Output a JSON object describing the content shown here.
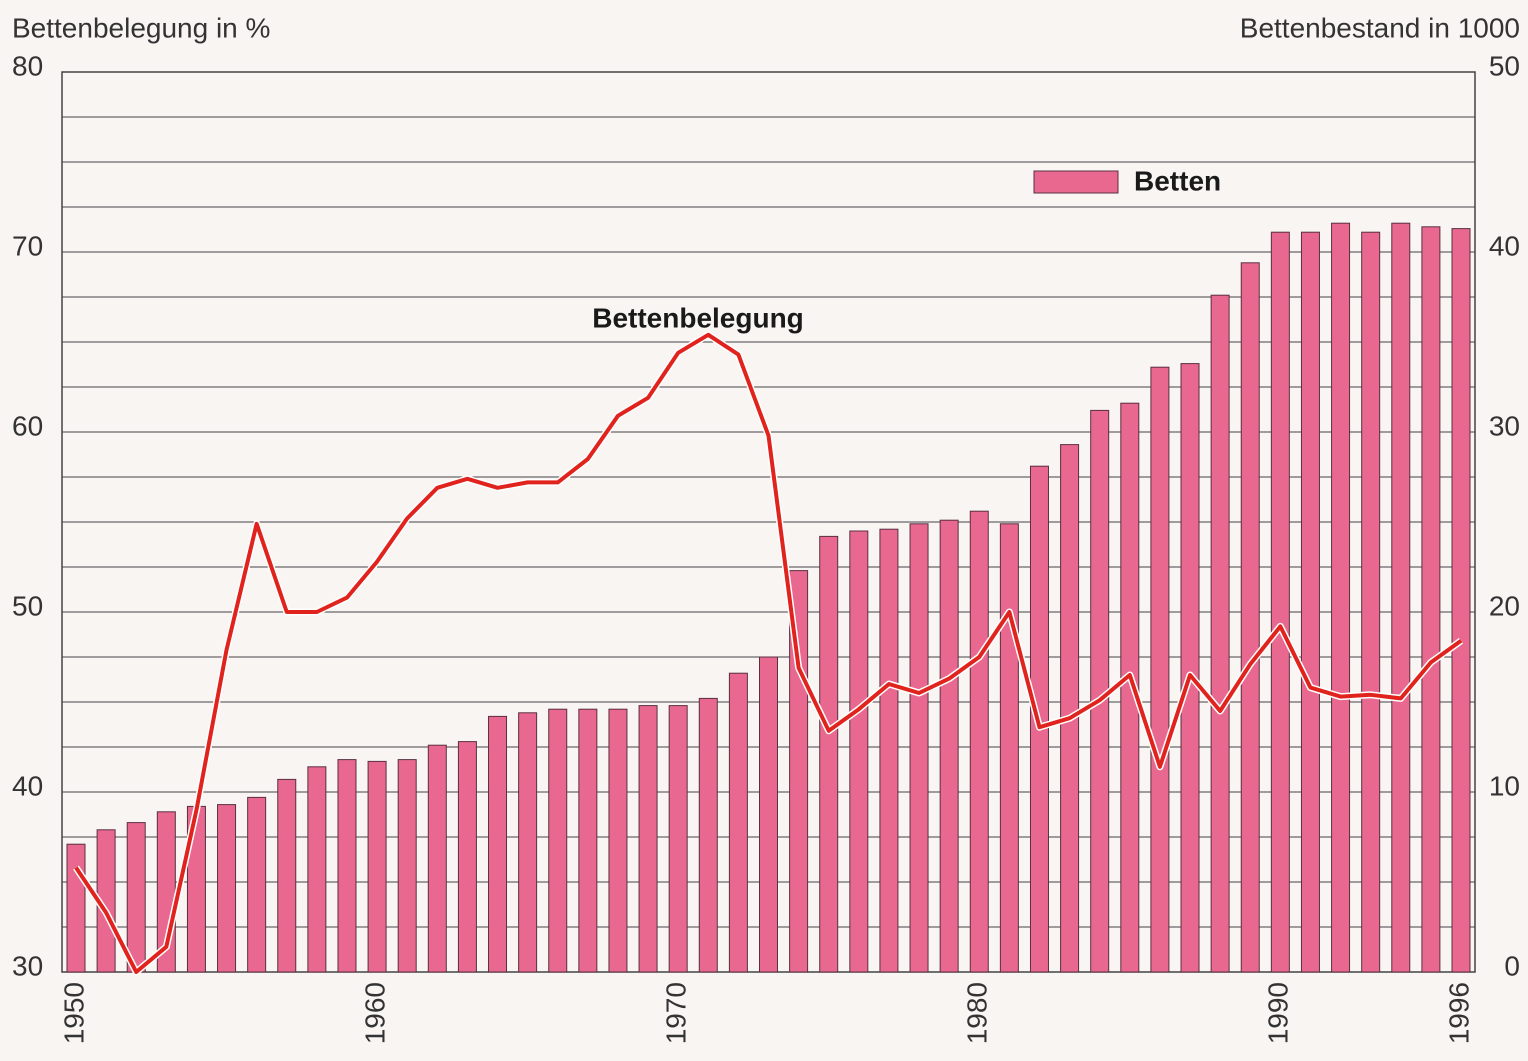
{
  "chart_data": {
    "type": "bar-line",
    "y_label": "Bettenbelegung in %",
    "y2_label": "Bettenbestand in 1000",
    "categories": [
      "1950",
      null,
      null,
      null,
      null,
      null,
      null,
      null,
      null,
      null,
      "1960",
      null,
      null,
      null,
      null,
      null,
      null,
      null,
      null,
      null,
      "1970",
      null,
      null,
      null,
      null,
      null,
      null,
      null,
      null,
      null,
      "1980",
      null,
      null,
      null,
      null,
      null,
      null,
      null,
      null,
      null,
      "1990",
      null,
      null,
      null,
      null,
      null,
      "1996"
    ],
    "series": [
      {
        "name": "Betten",
        "type": "bar",
        "axis": "y2",
        "color": "#e9688f",
        "values": [
          7.1,
          7.9,
          8.3,
          8.9,
          9.2,
          9.3,
          9.7,
          10.7,
          11.4,
          11.8,
          11.7,
          11.8,
          12.6,
          12.8,
          14.2,
          14.4,
          14.6,
          14.6,
          14.6,
          14.8,
          14.8,
          15.2,
          16.6,
          17.5,
          22.3,
          24.2,
          24.5,
          24.6,
          24.9,
          25.1,
          25.6,
          24.9,
          28.1,
          29.3,
          31.2,
          31.6,
          33.6,
          33.8,
          37.6,
          39.4,
          41.1,
          41.1,
          41.6,
          41.1,
          41.6,
          41.4,
          41.3
        ]
      },
      {
        "name": "Bettenbelegung",
        "type": "line",
        "axis": "y",
        "color": "#e0231d",
        "values": [
          35.8,
          33.3,
          30.0,
          31.4,
          39.0,
          47.9,
          54.9,
          50.0,
          50.0,
          50.8,
          52.8,
          55.2,
          56.9,
          57.4,
          56.9,
          57.2,
          57.2,
          58.5,
          60.9,
          61.9,
          64.4,
          65.4,
          64.3,
          59.8,
          46.9,
          43.4,
          44.6,
          46.0,
          45.5,
          46.3,
          47.5,
          50.0,
          43.6,
          44.1,
          45.1,
          46.5,
          41.4,
          46.5,
          44.5,
          47.1,
          49.2,
          45.8,
          45.3,
          45.4,
          45.2,
          47.2,
          48.4
        ]
      }
    ],
    "ylim": [
      30,
      80
    ],
    "yticks": [
      30,
      40,
      50,
      60,
      70,
      80
    ],
    "y2lim": [
      0,
      50
    ],
    "y2ticks": [
      0,
      10,
      20,
      30,
      40,
      50
    ],
    "grid": [
      30,
      32.5,
      35,
      37.5,
      40,
      42.5,
      45,
      47.5,
      50,
      52.5,
      55,
      57.5,
      60,
      62.5,
      65,
      67.5,
      70,
      72.5,
      75,
      77.5,
      80
    ]
  }
}
